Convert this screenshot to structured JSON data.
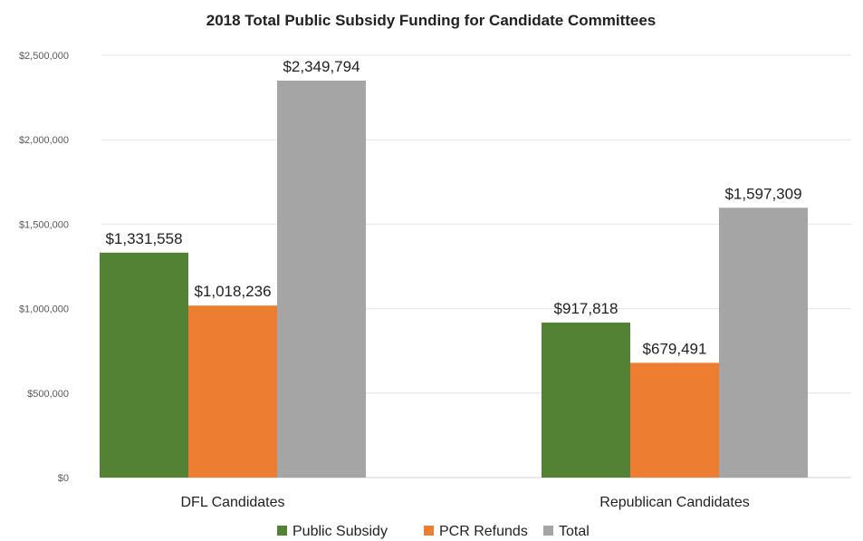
{
  "chart_data": {
    "type": "bar",
    "title": "2018 Total Public Subsidy Funding for Candidate Committees",
    "xlabel": "",
    "ylabel": "",
    "categories": [
      "DFL Candidates",
      "Republican Candidates"
    ],
    "series": [
      {
        "name": "Public Subsidy",
        "color": "#548235",
        "values": [
          1331558,
          917818
        ],
        "labels": [
          "$1,331,558",
          "$917,818"
        ]
      },
      {
        "name": "PCR Refunds",
        "color": "#ED7D31",
        "values": [
          1018236,
          679491
        ],
        "labels": [
          "$1,018,236",
          "$679,491"
        ]
      },
      {
        "name": "Total",
        "color": "#A5A5A5",
        "values": [
          2349794,
          1597309
        ],
        "labels": [
          "$2,349,794",
          "$1,597,309"
        ]
      }
    ],
    "ylim": [
      0,
      2500000
    ],
    "yticks": [
      0,
      500000,
      1000000,
      1500000,
      2000000,
      2500000
    ],
    "ytick_labels": [
      "$0",
      "$500,000",
      "$1,000,000",
      "$1,500,000",
      "$2,000,000",
      "$2,500,000"
    ],
    "grid": true,
    "legend": "bottom"
  }
}
